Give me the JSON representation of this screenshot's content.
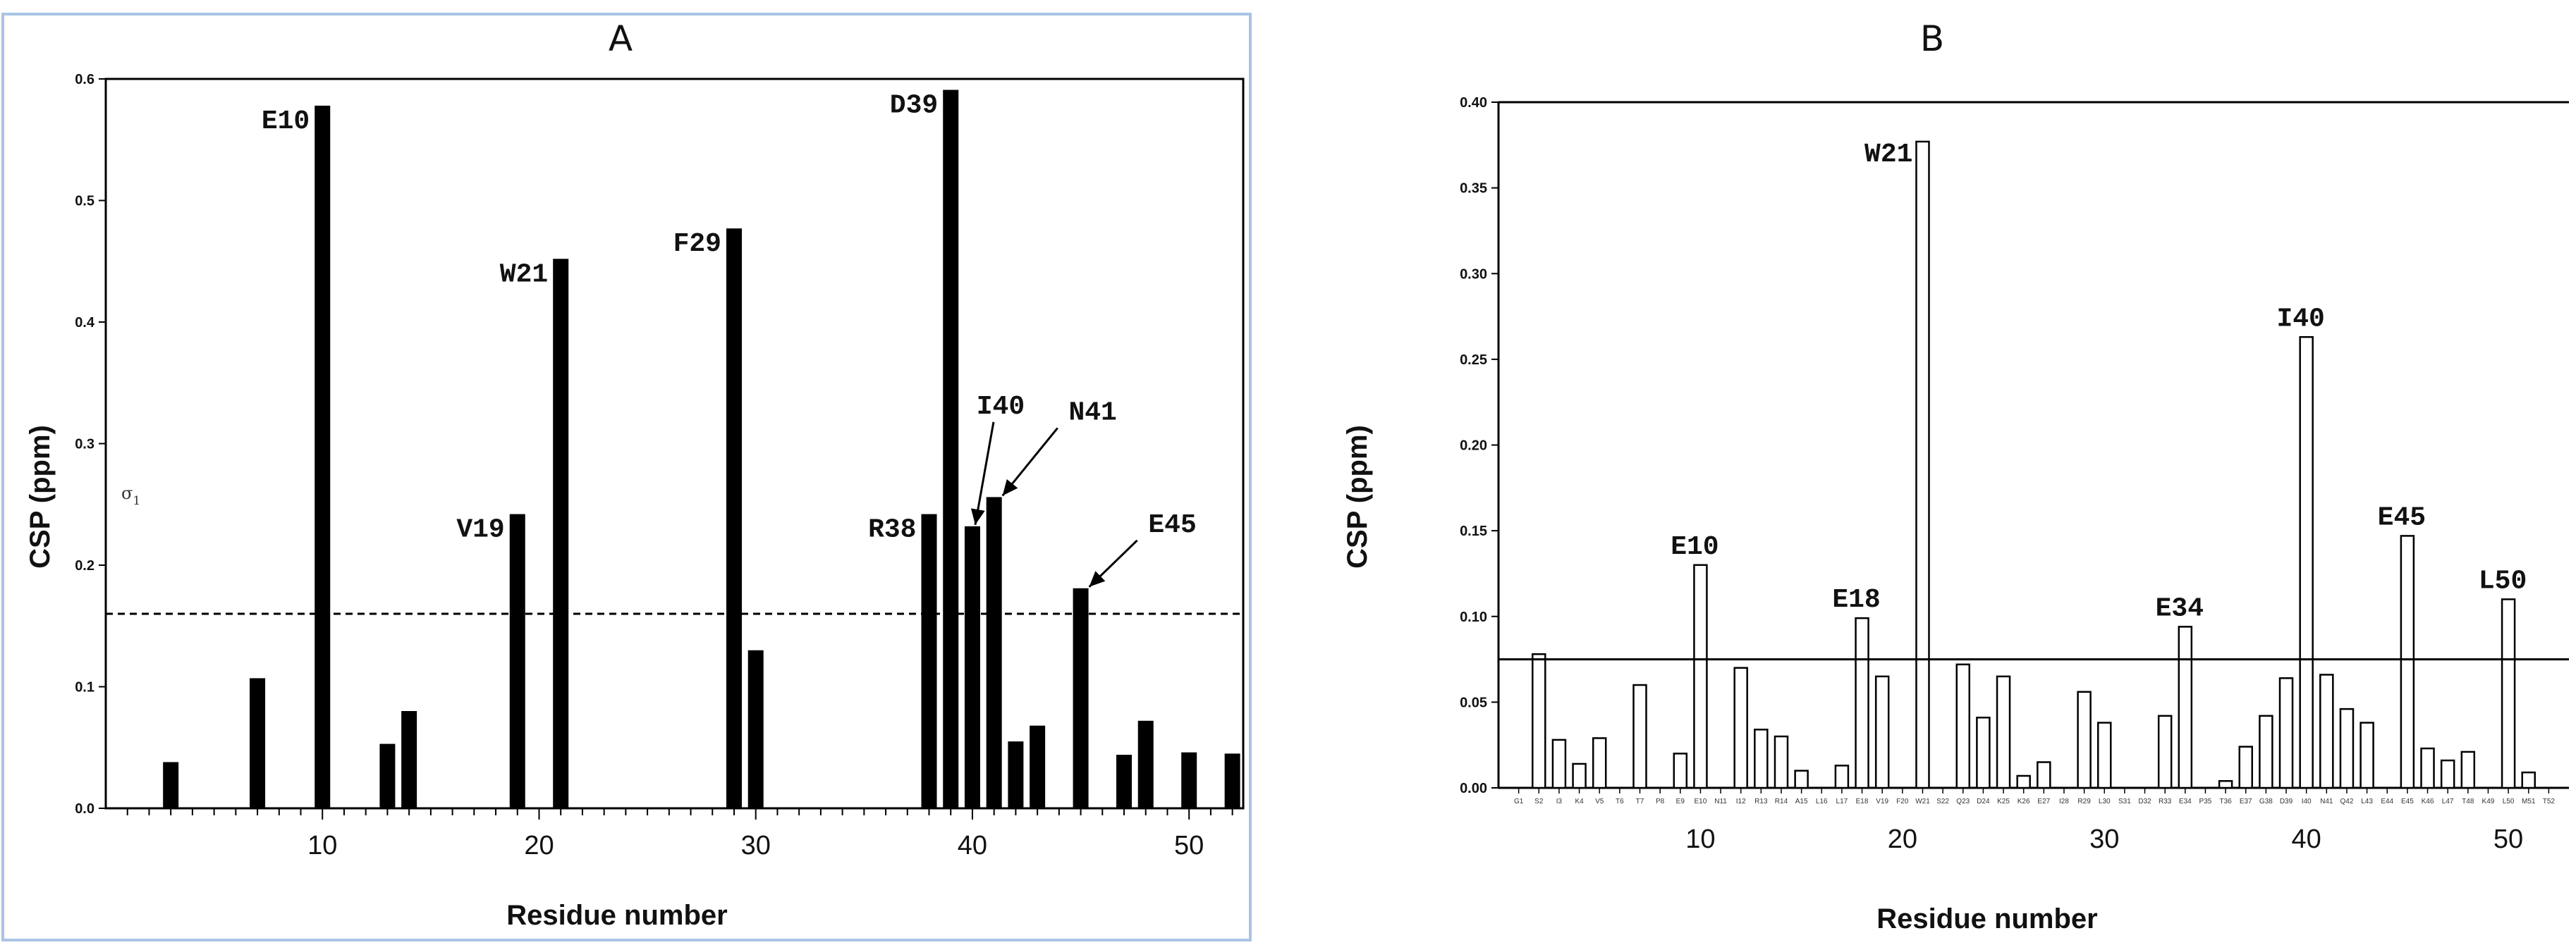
{
  "chart_data": [
    {
      "type": "bar",
      "panel": "A",
      "ylabel": "CSP (ppm)",
      "xlabel": "Residue number",
      "ylim": [
        0,
        0.6
      ],
      "xlim": [
        0,
        52.5
      ],
      "y_ticks": [
        "0.0",
        "0.1",
        "0.2",
        "0.3",
        "0.4",
        "0.5",
        "0.6"
      ],
      "x_ticks": [
        "10",
        "20",
        "30",
        "40",
        "50"
      ],
      "threshold": 0.16,
      "threshold_style": "dashed",
      "bar_style": "filled",
      "stray_symbol": "σ",
      "stray_symbol_sub": "1",
      "x": [
        3,
        7,
        10,
        13,
        14,
        19,
        21,
        29,
        30,
        38,
        39,
        40,
        41,
        42,
        43,
        45,
        47,
        48,
        50,
        52
      ],
      "values": [
        0.038,
        0.107,
        0.578,
        0.053,
        0.08,
        0.242,
        0.452,
        0.477,
        0.13,
        0.242,
        0.591,
        0.232,
        0.256,
        0.055,
        0.068,
        0.181,
        0.044,
        0.072,
        0.046,
        0.045
      ],
      "annotations": [
        {
          "text": "E10",
          "x": 10,
          "y": 0.578
        },
        {
          "text": "W21",
          "x": 21,
          "y": 0.452
        },
        {
          "text": "F29",
          "x": 29,
          "y": 0.477
        },
        {
          "text": "D39",
          "x": 39,
          "y": 0.591
        },
        {
          "text": "V19",
          "x": 19,
          "y": 0.242
        },
        {
          "text": "R38",
          "x": 38,
          "y": 0.242
        },
        {
          "text": "I40",
          "x": 40,
          "y": 0.232
        },
        {
          "text": "N41",
          "x": 41,
          "y": 0.256
        },
        {
          "text": "E45",
          "x": 45,
          "y": 0.181
        }
      ]
    },
    {
      "type": "bar",
      "panel": "B",
      "ylabel": "CSP (ppm)",
      "xlabel": "Residue number",
      "ylim": [
        0,
        0.4
      ],
      "xlim": [
        0,
        53
      ],
      "y_ticks": [
        "0.00",
        "0.05",
        "0.10",
        "0.15",
        "0.20",
        "0.25",
        "0.30",
        "0.35",
        "0.40"
      ],
      "x_ticks": [
        "10",
        "20",
        "30",
        "40",
        "50"
      ],
      "threshold": 0.075,
      "threshold_style": "solid",
      "bar_style": "open",
      "residue_labels": [
        "G1",
        "S2",
        "I3",
        "K4",
        "V5",
        "T6",
        "T7",
        "P8",
        "E9",
        "E10",
        "N11",
        "I12",
        "R13",
        "R14",
        "A15",
        "L16",
        "L17",
        "E18",
        "V19",
        "F20",
        "W21",
        "S22",
        "Q23",
        "D24",
        "K25",
        "K26",
        "E27",
        "I28",
        "R29",
        "L30",
        "S31",
        "D32",
        "R33",
        "E34",
        "P35",
        "T36",
        "E37",
        "G38",
        "D39",
        "I40",
        "N41",
        "Q42",
        "L43",
        "E44",
        "E45",
        "K46",
        "L47",
        "T48",
        "K49",
        "L50",
        "M51",
        "T52"
      ],
      "x": [
        1,
        2,
        3,
        4,
        5,
        6,
        7,
        8,
        9,
        10,
        11,
        12,
        13,
        14,
        15,
        16,
        17,
        18,
        19,
        20,
        21,
        22,
        23,
        24,
        25,
        26,
        27,
        28,
        29,
        30,
        31,
        32,
        33,
        34,
        35,
        36,
        37,
        38,
        39,
        40,
        41,
        42,
        43,
        44,
        45,
        46,
        47,
        48,
        49,
        50,
        51,
        52
      ],
      "values": [
        0,
        0.078,
        0.028,
        0.014,
        0.029,
        0,
        0.06,
        0,
        0.02,
        0.13,
        0,
        0.07,
        0.034,
        0.03,
        0.01,
        0,
        0.013,
        0.099,
        0.065,
        0,
        0.377,
        0,
        0.072,
        0.041,
        0.065,
        0.007,
        0.015,
        0,
        0.056,
        0.038,
        0,
        0,
        0.042,
        0.094,
        0,
        0.004,
        0.024,
        0.042,
        0.064,
        0.263,
        0.066,
        0.046,
        0.038,
        0,
        0.147,
        0.023,
        0.016,
        0.021,
        0,
        0.11,
        0.009,
        0
      ],
      "annotations": [
        {
          "text": "E10",
          "x": 10,
          "y": 0.13
        },
        {
          "text": "E18",
          "x": 18,
          "y": 0.099
        },
        {
          "text": "W21",
          "x": 21,
          "y": 0.377
        },
        {
          "text": "E34",
          "x": 34,
          "y": 0.094
        },
        {
          "text": "I40",
          "x": 40,
          "y": 0.263
        },
        {
          "text": "E45",
          "x": 45,
          "y": 0.147
        },
        {
          "text": "L50",
          "x": 50,
          "y": 0.11
        }
      ]
    }
  ],
  "panels": {
    "a_title": "A",
    "b_title": "B"
  },
  "colors": {
    "bar_a": "#000000",
    "bar_b_fill": "#ffffff",
    "axis": "#000000",
    "panel_a_border": "#a9c4e4"
  }
}
